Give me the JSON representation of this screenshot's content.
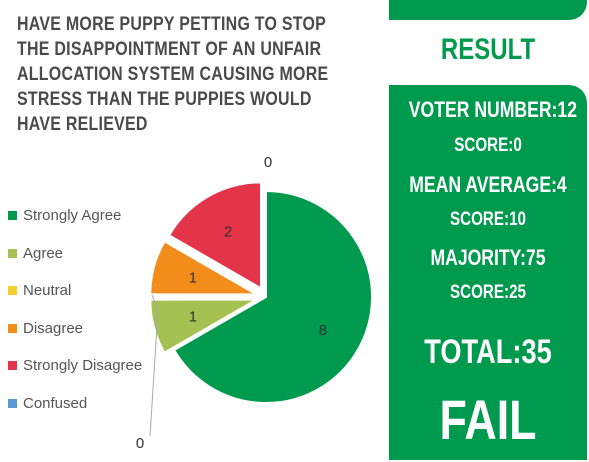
{
  "title": "HAVE MORE PUPPY PETTING TO STOP THE DISAPPOINTMENT OF AN UNFAIR ALLOCATION SYSTEM CAUSING MORE STRESS THAN THE PUPPIES WOULD HAVE RELIEVED",
  "chart_data": {
    "type": "pie",
    "title": "HAVE MORE PUPPY PETTING TO STOP THE DISAPPOINTMENT OF AN UNFAIR ALLOCATION SYSTEM CAUSING MORE STRESS THAN THE PUPPIES WOULD HAVE RELIEVED",
    "categories": [
      "Strongly Agree",
      "Agree",
      "Neutral",
      "Disagree",
      "Strongly Disagree",
      "Confused"
    ],
    "values": [
      8,
      1,
      0,
      1,
      2,
      0
    ],
    "colors": [
      "#009a4e",
      "#a4c152",
      "#f5d130",
      "#f28c1b",
      "#e3344a",
      "#5b9bd5"
    ],
    "legend_position": "left",
    "data_labels": [
      "8",
      "1",
      "0",
      "1",
      "2",
      "0"
    ]
  },
  "legend": [
    {
      "label": "Strongly Agree",
      "color": "#009a4e"
    },
    {
      "label": "Agree",
      "color": "#a4c152"
    },
    {
      "label": "Neutral",
      "color": "#f5d130"
    },
    {
      "label": "Disagree",
      "color": "#f28c1b"
    },
    {
      "label": "Strongly Disagree",
      "color": "#e3344a"
    },
    {
      "label": "Confused",
      "color": "#5b9bd5"
    }
  ],
  "result": {
    "heading": "RESULT",
    "voter_number": "VOTER NUMBER:12",
    "score_1": "SCORE:0",
    "mean_average": "MEAN AVERAGE:4",
    "score_2": "SCORE:10",
    "majority": "MAJORITY:75",
    "score_3": "SCORE:25",
    "total": "TOTAL:35",
    "verdict": "FAIL",
    "accent_color": "#009a4e"
  }
}
